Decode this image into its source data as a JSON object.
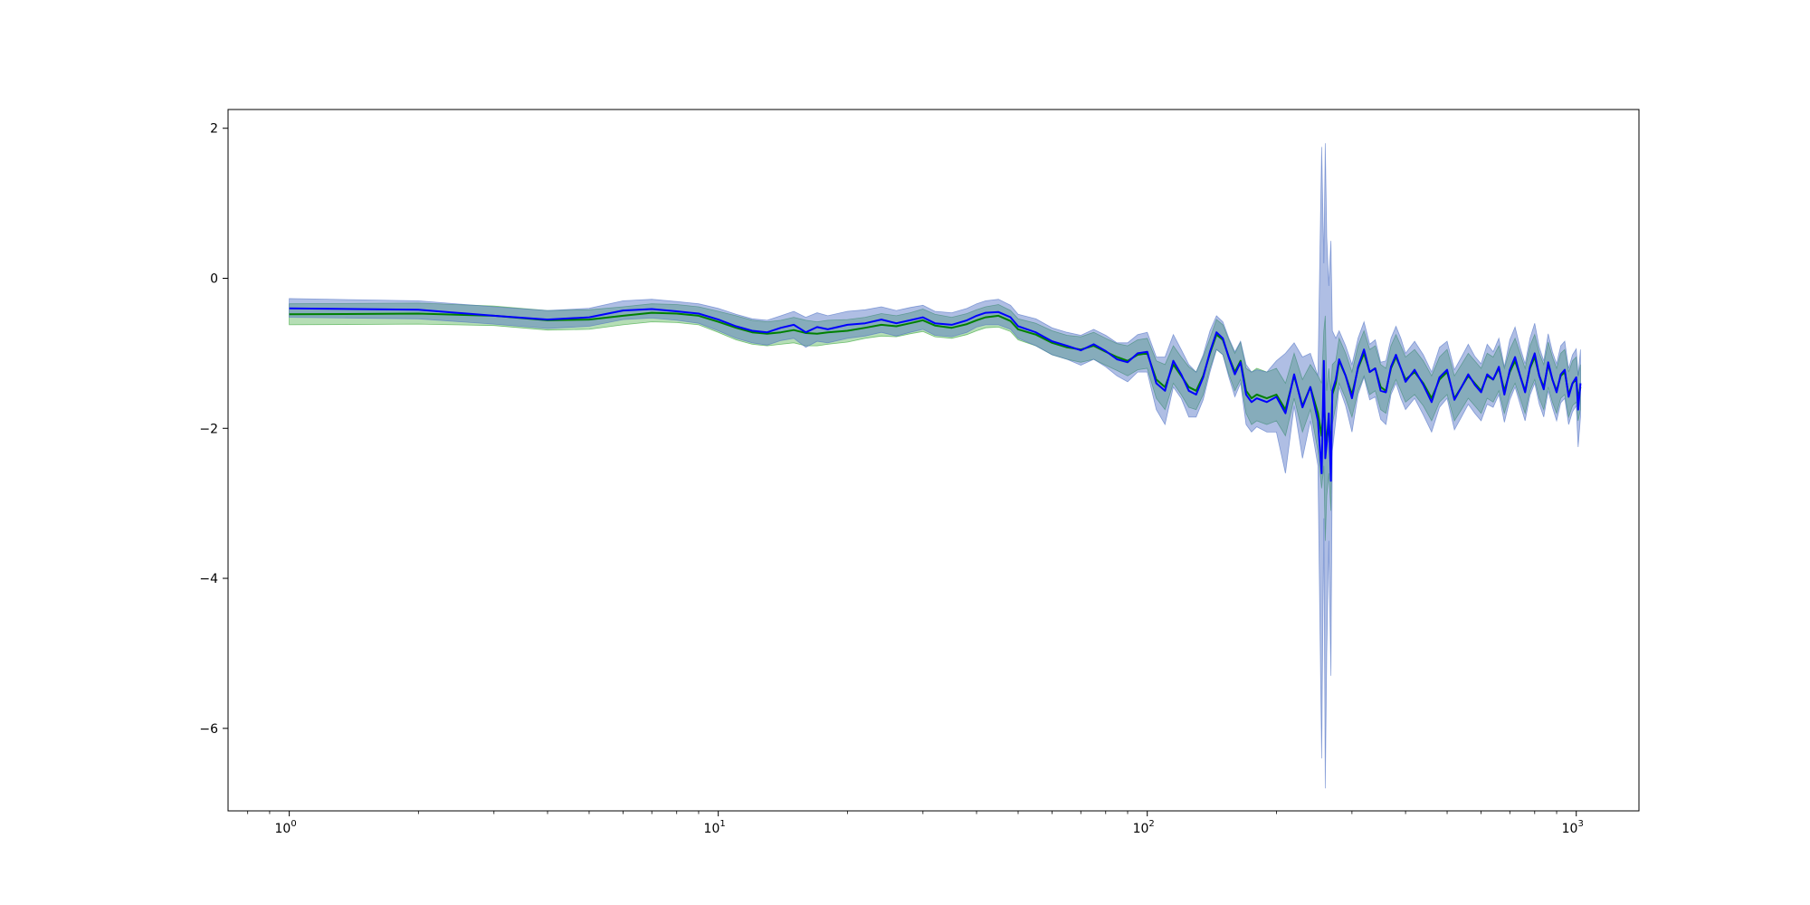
{
  "chart_data": {
    "type": "line",
    "title": "",
    "xlabel": "",
    "ylabel": "",
    "x_scale": "log",
    "xlim": [
      0.72,
      1400
    ],
    "ylim": [
      -7.1,
      2.25
    ],
    "grid": false,
    "legend": "none",
    "x_tick_labels": [
      {
        "value": 1,
        "base": "10",
        "exp": "0"
      },
      {
        "value": 10,
        "base": "10",
        "exp": "1"
      },
      {
        "value": 100,
        "base": "10",
        "exp": "2"
      },
      {
        "value": 1000,
        "base": "10",
        "exp": "3"
      }
    ],
    "y_ticks": [
      2,
      0,
      -2,
      -4,
      -6
    ],
    "y_tick_labels": [
      "2",
      "0",
      "−2",
      "−4",
      "−6"
    ],
    "series": [
      {
        "color": "#008000",
        "band_color": "#2ca02c",
        "x": [
          1,
          2,
          3,
          4,
          5,
          6,
          7,
          8,
          9,
          10,
          11,
          12,
          13,
          14,
          15,
          16,
          17,
          18,
          20,
          22,
          24,
          26,
          28,
          30,
          32,
          35,
          38,
          40,
          42,
          45,
          48,
          50,
          55,
          60,
          65,
          70,
          75,
          80,
          85,
          90,
          95,
          100,
          105,
          110,
          115,
          120,
          125,
          130,
          135,
          140,
          145,
          150,
          155,
          160,
          165,
          170,
          175,
          180,
          190,
          200,
          210,
          220,
          230,
          240,
          250,
          255,
          258,
          260,
          262,
          265,
          268,
          270,
          275,
          280,
          290,
          300,
          310,
          320,
          330,
          340,
          350,
          360,
          370,
          380,
          390,
          400,
          420,
          440,
          460,
          480,
          500,
          520,
          540,
          560,
          580,
          600,
          620,
          640,
          660,
          680,
          700,
          720,
          740,
          760,
          780,
          800,
          820,
          840,
          860,
          880,
          900,
          920,
          940,
          960,
          980,
          1000,
          1010,
          1023
        ],
        "y": [
          -0.48,
          -0.47,
          -0.5,
          -0.56,
          -0.55,
          -0.5,
          -0.46,
          -0.47,
          -0.5,
          -0.58,
          -0.66,
          -0.72,
          -0.74,
          -0.72,
          -0.69,
          -0.73,
          -0.74,
          -0.72,
          -0.7,
          -0.66,
          -0.62,
          -0.64,
          -0.6,
          -0.56,
          -0.63,
          -0.66,
          -0.61,
          -0.56,
          -0.52,
          -0.5,
          -0.57,
          -0.68,
          -0.75,
          -0.86,
          -0.92,
          -0.95,
          -0.9,
          -0.98,
          -1.05,
          -1.1,
          -1.02,
          -1.0,
          -1.35,
          -1.45,
          -1.15,
          -1.3,
          -1.45,
          -1.5,
          -1.3,
          -1.0,
          -0.75,
          -0.82,
          -1.05,
          -1.25,
          -1.1,
          -1.5,
          -1.6,
          -1.55,
          -1.6,
          -1.55,
          -1.75,
          -1.3,
          -1.7,
          -1.45,
          -1.8,
          -2.1,
          -1.6,
          -2.0,
          -2.2,
          -1.9,
          -2.3,
          -1.55,
          -1.4,
          -1.1,
          -1.3,
          -1.55,
          -1.2,
          -1.0,
          -1.25,
          -1.2,
          -1.45,
          -1.5,
          -1.2,
          -1.05,
          -1.2,
          -1.35,
          -1.25,
          -1.4,
          -1.6,
          -1.35,
          -1.25,
          -1.6,
          -1.45,
          -1.3,
          -1.4,
          -1.5,
          -1.3,
          -1.35,
          -1.2,
          -1.5,
          -1.25,
          -1.1,
          -1.3,
          -1.5,
          -1.2,
          -1.05,
          -1.3,
          -1.45,
          -1.15,
          -1.35,
          -1.5,
          -1.3,
          -1.25,
          -1.55,
          -1.4,
          -1.35,
          -1.6,
          -1.45
        ],
        "lower": [
          -0.62,
          -0.61,
          -0.63,
          -0.69,
          -0.68,
          -0.62,
          -0.58,
          -0.59,
          -0.62,
          -0.72,
          -0.82,
          -0.88,
          -0.9,
          -0.88,
          -0.86,
          -0.9,
          -0.9,
          -0.88,
          -0.85,
          -0.8,
          -0.77,
          -0.78,
          -0.74,
          -0.71,
          -0.78,
          -0.8,
          -0.75,
          -0.7,
          -0.66,
          -0.65,
          -0.71,
          -0.82,
          -0.9,
          -1.02,
          -1.08,
          -1.12,
          -1.08,
          -1.16,
          -1.23,
          -1.3,
          -1.22,
          -1.2,
          -1.6,
          -1.75,
          -1.4,
          -1.55,
          -1.72,
          -1.75,
          -1.55,
          -1.2,
          -0.95,
          -1.02,
          -1.28,
          -1.5,
          -1.35,
          -1.8,
          -1.95,
          -1.9,
          -1.95,
          -1.9,
          -2.1,
          -1.6,
          -2.05,
          -1.75,
          -2.3,
          -2.8,
          -2.5,
          -3.5,
          -2.9,
          -2.6,
          -3.1,
          -1.95,
          -1.7,
          -1.4,
          -1.6,
          -1.85,
          -1.5,
          -1.3,
          -1.55,
          -1.5,
          -1.75,
          -1.8,
          -1.5,
          -1.35,
          -1.5,
          -1.65,
          -1.55,
          -1.7,
          -1.9,
          -1.65,
          -1.55,
          -1.9,
          -1.75,
          -1.6,
          -1.7,
          -1.8,
          -1.6,
          -1.65,
          -1.5,
          -1.8,
          -1.55,
          -1.4,
          -1.6,
          -1.8,
          -1.5,
          -1.35,
          -1.6,
          -1.75,
          -1.45,
          -1.65,
          -1.8,
          -1.6,
          -1.55,
          -1.85,
          -1.7,
          -1.65,
          -1.9,
          -1.75
        ],
        "upper": [
          -0.34,
          -0.33,
          -0.37,
          -0.43,
          -0.42,
          -0.38,
          -0.34,
          -0.35,
          -0.38,
          -0.44,
          -0.5,
          -0.56,
          -0.58,
          -0.56,
          -0.52,
          -0.56,
          -0.58,
          -0.56,
          -0.55,
          -0.52,
          -0.47,
          -0.5,
          -0.46,
          -0.41,
          -0.48,
          -0.52,
          -0.47,
          -0.42,
          -0.38,
          -0.35,
          -0.43,
          -0.54,
          -0.6,
          -0.7,
          -0.76,
          -0.78,
          -0.72,
          -0.8,
          -0.87,
          -0.9,
          -0.82,
          -0.8,
          -1.1,
          -1.15,
          -0.9,
          -1.05,
          -1.18,
          -1.25,
          -1.05,
          -0.8,
          -0.55,
          -0.62,
          -0.82,
          -1.0,
          -0.85,
          -1.2,
          -1.25,
          -1.2,
          -1.25,
          -1.2,
          -1.4,
          -1.0,
          -1.35,
          -1.15,
          -1.3,
          -1.4,
          -0.7,
          -0.5,
          -1.5,
          -1.2,
          -1.5,
          -1.15,
          -1.1,
          -0.8,
          -1.0,
          -1.25,
          -0.9,
          -0.7,
          -0.95,
          -0.9,
          -1.15,
          -1.2,
          -0.9,
          -0.75,
          -0.9,
          -1.05,
          -0.95,
          -1.1,
          -1.3,
          -1.05,
          -0.95,
          -1.3,
          -1.15,
          -1.0,
          -1.1,
          -1.2,
          -1.0,
          -1.05,
          -0.9,
          -1.2,
          -0.95,
          -0.8,
          -1.0,
          -1.2,
          -0.9,
          -0.75,
          -1.0,
          -1.15,
          -0.85,
          -1.05,
          -1.2,
          -1.0,
          -0.95,
          -1.25,
          -1.1,
          -1.05,
          -1.3,
          -1.15
        ]
      },
      {
        "color": "#0000ff",
        "band_color": "#4d6fc4",
        "x": [
          1,
          2,
          3,
          4,
          5,
          6,
          7,
          8,
          9,
          10,
          11,
          12,
          13,
          14,
          15,
          16,
          17,
          18,
          20,
          22,
          24,
          26,
          28,
          30,
          32,
          35,
          38,
          40,
          42,
          45,
          48,
          50,
          55,
          60,
          65,
          70,
          75,
          80,
          85,
          90,
          95,
          100,
          105,
          110,
          115,
          120,
          125,
          130,
          135,
          140,
          145,
          150,
          155,
          160,
          165,
          170,
          175,
          180,
          190,
          200,
          210,
          220,
          230,
          240,
          250,
          255,
          258,
          260,
          262,
          265,
          268,
          270,
          275,
          280,
          290,
          300,
          310,
          320,
          330,
          340,
          350,
          360,
          370,
          380,
          390,
          400,
          420,
          440,
          460,
          480,
          500,
          520,
          540,
          560,
          580,
          600,
          620,
          640,
          660,
          680,
          700,
          720,
          740,
          760,
          780,
          800,
          820,
          840,
          860,
          880,
          900,
          920,
          940,
          960,
          980,
          1000,
          1010,
          1023
        ],
        "y": [
          -0.4,
          -0.42,
          -0.5,
          -0.55,
          -0.52,
          -0.43,
          -0.41,
          -0.44,
          -0.47,
          -0.55,
          -0.64,
          -0.7,
          -0.72,
          -0.66,
          -0.62,
          -0.72,
          -0.65,
          -0.68,
          -0.62,
          -0.6,
          -0.55,
          -0.6,
          -0.56,
          -0.52,
          -0.6,
          -0.62,
          -0.56,
          -0.5,
          -0.46,
          -0.45,
          -0.52,
          -0.64,
          -0.72,
          -0.84,
          -0.9,
          -0.96,
          -0.88,
          -0.97,
          -1.08,
          -1.12,
          -1.0,
          -0.98,
          -1.4,
          -1.5,
          -1.1,
          -1.28,
          -1.5,
          -1.55,
          -1.32,
          -0.98,
          -0.72,
          -0.8,
          -1.06,
          -1.28,
          -1.12,
          -1.55,
          -1.65,
          -1.6,
          -1.65,
          -1.58,
          -1.8,
          -1.28,
          -1.72,
          -1.45,
          -1.9,
          -2.6,
          -1.1,
          -2.4,
          -2.2,
          -1.8,
          -2.7,
          -1.5,
          -1.35,
          -1.08,
          -1.3,
          -1.6,
          -1.18,
          -0.95,
          -1.25,
          -1.2,
          -1.5,
          -1.52,
          -1.18,
          -1.02,
          -1.2,
          -1.38,
          -1.22,
          -1.42,
          -1.65,
          -1.32,
          -1.22,
          -1.62,
          -1.45,
          -1.28,
          -1.42,
          -1.52,
          -1.28,
          -1.35,
          -1.18,
          -1.55,
          -1.22,
          -1.05,
          -1.3,
          -1.52,
          -1.18,
          -1.0,
          -1.3,
          -1.48,
          -1.12,
          -1.35,
          -1.52,
          -1.28,
          -1.22,
          -1.58,
          -1.4,
          -1.32,
          -1.75,
          -1.4
        ],
        "lower": [
          -0.52,
          -0.54,
          -0.61,
          -0.67,
          -0.64,
          -0.55,
          -0.53,
          -0.56,
          -0.6,
          -0.7,
          -0.8,
          -0.86,
          -0.89,
          -0.83,
          -0.8,
          -0.92,
          -0.84,
          -0.86,
          -0.8,
          -0.77,
          -0.72,
          -0.77,
          -0.72,
          -0.68,
          -0.76,
          -0.78,
          -0.72,
          -0.65,
          -0.62,
          -0.62,
          -0.68,
          -0.8,
          -0.9,
          -1.02,
          -1.08,
          -1.16,
          -1.08,
          -1.18,
          -1.3,
          -1.38,
          -1.25,
          -1.25,
          -1.75,
          -1.95,
          -1.45,
          -1.6,
          -1.85,
          -1.85,
          -1.62,
          -1.25,
          -0.95,
          -1.02,
          -1.32,
          -1.58,
          -1.4,
          -1.95,
          -2.05,
          -1.98,
          -2.05,
          -2.05,
          -2.6,
          -1.7,
          -2.4,
          -1.9,
          -2.5,
          -6.4,
          -3.2,
          -6.8,
          -5.0,
          -3.5,
          -5.3,
          -2.3,
          -1.9,
          -1.45,
          -1.7,
          -2.05,
          -1.55,
          -1.32,
          -1.62,
          -1.58,
          -1.88,
          -1.95,
          -1.55,
          -1.4,
          -1.6,
          -1.75,
          -1.6,
          -1.82,
          -2.05,
          -1.72,
          -1.6,
          -2.02,
          -1.85,
          -1.68,
          -1.8,
          -1.9,
          -1.68,
          -1.72,
          -1.55,
          -1.92,
          -1.62,
          -1.45,
          -1.68,
          -1.9,
          -1.56,
          -1.4,
          -1.68,
          -1.85,
          -1.5,
          -1.72,
          -1.9,
          -1.66,
          -1.6,
          -1.95,
          -1.78,
          -1.7,
          -2.25,
          -1.85
        ],
        "upper": [
          -0.27,
          -0.3,
          -0.38,
          -0.43,
          -0.4,
          -0.3,
          -0.28,
          -0.31,
          -0.34,
          -0.4,
          -0.48,
          -0.54,
          -0.56,
          -0.5,
          -0.44,
          -0.52,
          -0.46,
          -0.5,
          -0.44,
          -0.42,
          -0.38,
          -0.43,
          -0.39,
          -0.36,
          -0.44,
          -0.46,
          -0.4,
          -0.34,
          -0.3,
          -0.28,
          -0.36,
          -0.48,
          -0.54,
          -0.66,
          -0.72,
          -0.76,
          -0.68,
          -0.76,
          -0.86,
          -0.86,
          -0.75,
          -0.72,
          -1.05,
          -1.05,
          -0.75,
          -0.95,
          -1.15,
          -1.25,
          -1.02,
          -0.7,
          -0.5,
          -0.58,
          -0.8,
          -0.98,
          -0.84,
          -1.15,
          -1.25,
          -1.22,
          -1.25,
          -1.1,
          -1.0,
          -0.86,
          -1.05,
          -1.0,
          -1.3,
          1.75,
          0.2,
          1.8,
          0.55,
          -0.1,
          0.5,
          -0.7,
          -0.8,
          -0.7,
          -0.9,
          -1.15,
          -0.8,
          -0.58,
          -0.88,
          -0.82,
          -1.12,
          -1.1,
          -0.8,
          -0.64,
          -0.8,
          -1.0,
          -0.84,
          -1.02,
          -1.25,
          -0.92,
          -0.84,
          -1.22,
          -1.05,
          -0.88,
          -1.04,
          -1.14,
          -0.88,
          -0.98,
          -0.8,
          -1.18,
          -0.82,
          -0.65,
          -0.92,
          -1.14,
          -0.8,
          -0.6,
          -0.92,
          -1.1,
          -0.74,
          -0.98,
          -1.14,
          -0.9,
          -0.84,
          -1.2,
          -1.02,
          -0.94,
          -1.3,
          -0.95
        ]
      }
    ]
  }
}
